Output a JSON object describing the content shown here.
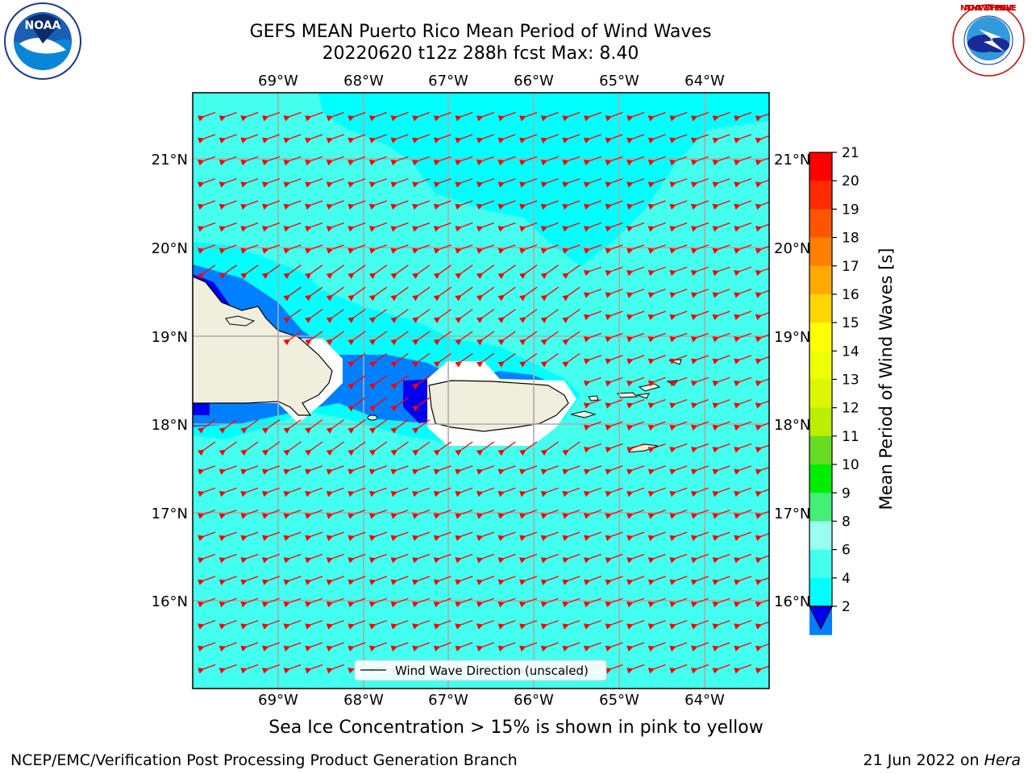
{
  "header": {
    "title_line1": "GEFS MEAN Puerto Rico Mean Period of Wind Waves",
    "title_line2": "20220620 t12z 288h fcst   Max: 8.40"
  },
  "map": {
    "lon_labels": [
      "69°W",
      "68°W",
      "67°W",
      "66°W",
      "65°W",
      "64°W"
    ],
    "lat_labels": [
      "21°N",
      "20°N",
      "19°N",
      "18°N",
      "17°N",
      "16°N"
    ],
    "legend_label": "Wind Wave Direction (unscaled)",
    "arrow_color": "#ff0000",
    "land_color": "#f0eedc"
  },
  "colorbar": {
    "label": "Mean Period of Wind Waves [s]",
    "ticks": [
      "21",
      "20",
      "19",
      "18",
      "17",
      "16",
      "15",
      "14",
      "13",
      "12",
      "11",
      "10",
      "9",
      "8",
      "6",
      "4",
      "2"
    ],
    "colors": [
      "#ff0000",
      "#ff2a00",
      "#ff5500",
      "#ff8000",
      "#ffaa00",
      "#ffd400",
      "#ffff00",
      "#eeff00",
      "#ddf500",
      "#bbee00",
      "#66dd22",
      "#00ee00",
      "#44ee77",
      "#99ffee",
      "#44ffee",
      "#00ffff",
      "#0080ff"
    ],
    "under_color": "#0000ee"
  },
  "subnote": "Sea Ice Concentration > 15% is shown in pink to yellow",
  "footer": {
    "left": "NCEP/EMC/Verification Post Processing Product Generation Branch",
    "right_date": "21 Jun 2022 on ",
    "right_host": "Hera"
  },
  "logos": {
    "noaa_text": "NOAA",
    "nws_text": "NATIONAL WEATHER SERVICE"
  }
}
